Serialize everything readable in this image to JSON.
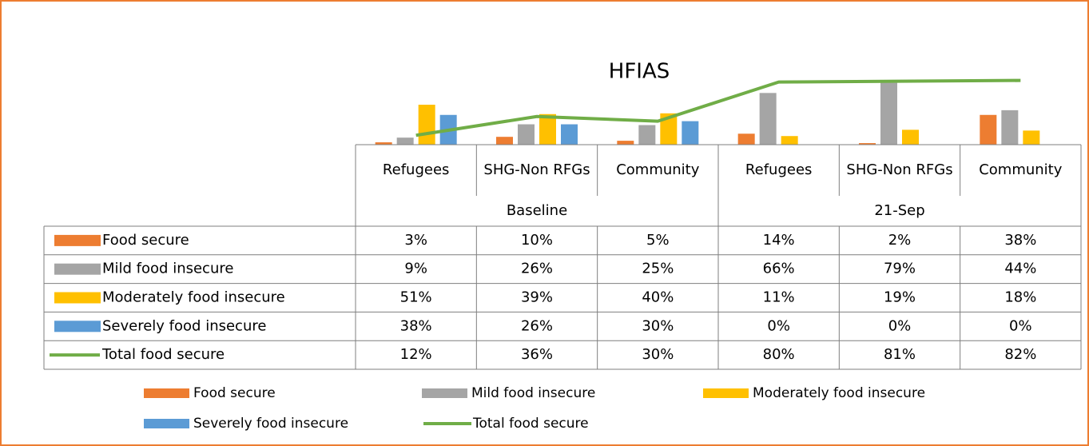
{
  "chart_data": {
    "type": "bar",
    "title": "HFIAS",
    "categories": [
      "Refugees",
      "SHG-Non RFGs",
      "Community",
      "Refugees",
      "SHG-Non RFGs",
      "Community"
    ],
    "groups": [
      {
        "label": "Baseline",
        "size": 3
      },
      {
        "label": "21-Sep",
        "size": 3
      }
    ],
    "ylim": [
      0,
      100
    ],
    "series": [
      {
        "name": "Food secure",
        "type": "bar",
        "color": "#ed7d31",
        "values": [
          3,
          10,
          5,
          14,
          2,
          38
        ],
        "value_labels": [
          "3%",
          "10%",
          "5%",
          "14%",
          "2%",
          "38%"
        ]
      },
      {
        "name": "Mild food insecure",
        "type": "bar",
        "color": "#a5a5a5",
        "values": [
          9,
          26,
          25,
          66,
          79,
          44
        ],
        "value_labels": [
          "9%",
          "26%",
          "25%",
          "66%",
          "79%",
          "44%"
        ]
      },
      {
        "name": "Moderately food insecure",
        "type": "bar",
        "color": "#ffc000",
        "values": [
          51,
          39,
          40,
          11,
          19,
          18
        ],
        "value_labels": [
          "51%",
          "39%",
          "40%",
          "11%",
          "19%",
          "18%"
        ]
      },
      {
        "name": "Severely food insecure",
        "type": "bar",
        "color": "#5b9bd5",
        "values": [
          38,
          26,
          30,
          0,
          0,
          0
        ],
        "value_labels": [
          "38%",
          "26%",
          "30%",
          "0%",
          "0%",
          "0%"
        ]
      },
      {
        "name": "Total food secure",
        "type": "line",
        "color": "#70ad47",
        "values": [
          12,
          36,
          30,
          80,
          81,
          82
        ],
        "value_labels": [
          "12%",
          "36%",
          "30%",
          "80%",
          "81%",
          "82%"
        ]
      }
    ]
  }
}
